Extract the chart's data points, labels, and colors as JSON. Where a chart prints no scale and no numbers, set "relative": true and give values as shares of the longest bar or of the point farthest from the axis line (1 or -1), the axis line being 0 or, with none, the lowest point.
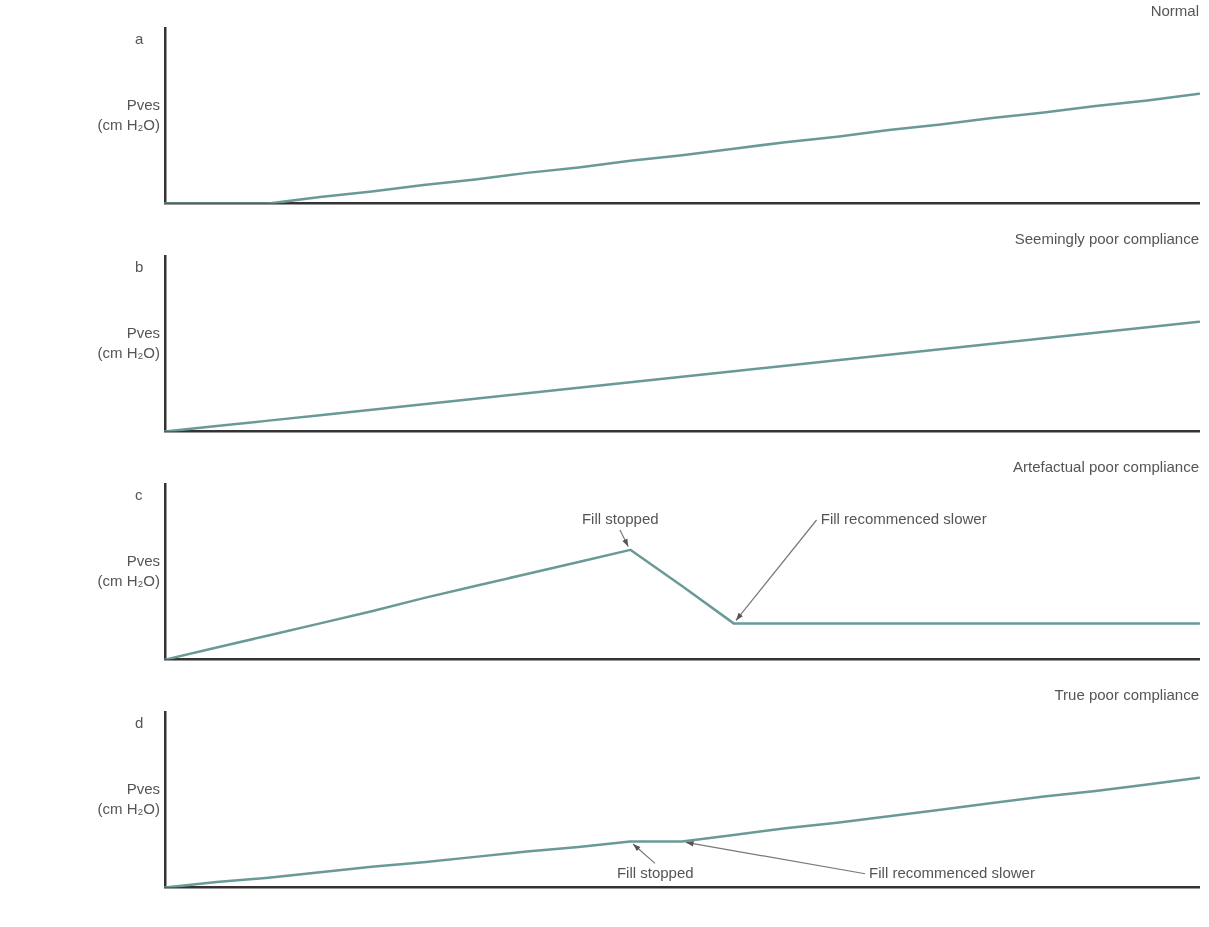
{
  "chart_data": [
    {
      "type": "line",
      "title": "a",
      "subtitle": "Normal",
      "ylabel": "Pves\n(cm H₂O)",
      "relative": true,
      "categories": [
        null,
        null,
        null,
        null,
        null,
        null,
        null,
        null,
        null,
        null,
        null,
        null,
        null,
        null,
        null,
        null,
        null,
        null,
        null,
        null,
        null
      ],
      "series": [
        {
          "color": "#6a9a96",
          "values": [
            0,
            0,
            0,
            0.06,
            0.11,
            0.17,
            0.22,
            0.28,
            0.33,
            0.39,
            0.44,
            0.5,
            0.56,
            0.61,
            0.67,
            0.72,
            0.78,
            0.83,
            0.89,
            0.94,
            1
          ]
        }
      ]
    },
    {
      "type": "line",
      "title": "b",
      "subtitle": "Seemingly poor compliance",
      "ylabel": "Pves\n(cm H₂O)",
      "relative": true,
      "categories": [
        null,
        null,
        null,
        null,
        null,
        null,
        null,
        null,
        null,
        null,
        null,
        null,
        null,
        null,
        null,
        null,
        null,
        null,
        null,
        null,
        null
      ],
      "series": [
        {
          "color": "#6a9a96",
          "values": [
            0,
            0.05,
            0.1,
            0.15,
            0.2,
            0.25,
            0.3,
            0.35,
            0.4,
            0.45,
            0.5,
            0.55,
            0.6,
            0.65,
            0.7,
            0.75,
            0.8,
            0.85,
            0.9,
            0.95,
            1
          ]
        }
      ]
    },
    {
      "type": "line",
      "title": "c",
      "subtitle": "Artefactual poor compliance",
      "ylabel": "Pves\n(cm H₂O)",
      "relative": true,
      "categories": [
        null,
        null,
        null,
        null,
        null,
        null,
        null,
        null,
        null,
        null,
        null,
        null,
        null,
        null,
        null,
        null,
        null,
        null,
        null,
        null,
        null
      ],
      "series": [
        {
          "color": "#6a9a96",
          "values": [
            0,
            0.11,
            0.22,
            0.33,
            0.44,
            0.56,
            0.67,
            0.78,
            0.89,
            1,
            0.67,
            0.33,
            0.33,
            0.33,
            0.33,
            0.33,
            0.33,
            0.33,
            0.33,
            0.33,
            0.33
          ]
        }
      ],
      "annotations": [
        "Fill stopped",
        "Fill recommenced slower"
      ]
    },
    {
      "type": "line",
      "title": "d",
      "subtitle": "True poor compliance",
      "ylabel": "Pves\n(cm H₂O)",
      "relative": true,
      "categories": [
        null,
        null,
        null,
        null,
        null,
        null,
        null,
        null,
        null,
        null,
        null,
        null,
        null,
        null,
        null,
        null,
        null,
        null,
        null,
        null,
        null
      ],
      "series": [
        {
          "color": "#6a9a96",
          "values": [
            0,
            0.05,
            0.09,
            0.14,
            0.19,
            0.23,
            0.28,
            0.33,
            0.37,
            0.42,
            0.42,
            0.48,
            0.54,
            0.59,
            0.65,
            0.71,
            0.77,
            0.83,
            0.88,
            0.94,
            1
          ]
        }
      ],
      "annotations": [
        "Fill stopped",
        "Fill recommenced slower"
      ]
    }
  ]
}
